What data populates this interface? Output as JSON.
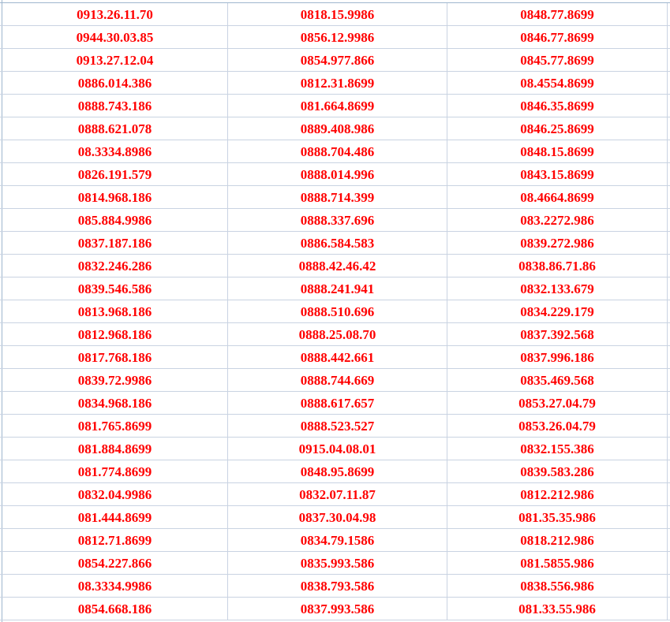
{
  "text_color": "#ff0000",
  "rows": [
    [
      "0913.26.11.70",
      "0818.15.9986",
      "0848.77.8699"
    ],
    [
      "0944.30.03.85",
      "0856.12.9986",
      "0846.77.8699"
    ],
    [
      "0913.27.12.04",
      "0854.977.866",
      "0845.77.8699"
    ],
    [
      "0886.014.386",
      "0812.31.8699",
      "08.4554.8699"
    ],
    [
      "0888.743.186",
      "081.664.8699",
      "0846.35.8699"
    ],
    [
      "0888.621.078",
      "0889.408.986",
      "0846.25.8699"
    ],
    [
      "08.3334.8986",
      "0888.704.486",
      "0848.15.8699"
    ],
    [
      "0826.191.579",
      "0888.014.996",
      "0843.15.8699"
    ],
    [
      "0814.968.186",
      "0888.714.399",
      "08.4664.8699"
    ],
    [
      "085.884.9986",
      "0888.337.696",
      "083.2272.986"
    ],
    [
      "0837.187.186",
      "0886.584.583",
      "0839.272.986"
    ],
    [
      "0832.246.286",
      "0888.42.46.42",
      "0838.86.71.86"
    ],
    [
      "0839.546.586",
      "0888.241.941",
      "0832.133.679"
    ],
    [
      "0813.968.186",
      "0888.510.696",
      "0834.229.179"
    ],
    [
      "0812.968.186",
      "0888.25.08.70",
      "0837.392.568"
    ],
    [
      "0817.768.186",
      "0888.442.661",
      "0837.996.186"
    ],
    [
      "0839.72.9986",
      "0888.744.669",
      "0835.469.568"
    ],
    [
      "0834.968.186",
      "0888.617.657",
      "0853.27.04.79"
    ],
    [
      "081.765.8699",
      "0888.523.527",
      "0853.26.04.79"
    ],
    [
      "081.884.8699",
      "0915.04.08.01",
      "0832.155.386"
    ],
    [
      "081.774.8699",
      "0848.95.8699",
      "0839.583.286"
    ],
    [
      "0832.04.9986",
      "0832.07.11.87",
      "0812.212.986"
    ],
    [
      "081.444.8699",
      "0837.30.04.98",
      "081.35.35.986"
    ],
    [
      "0812.71.8699",
      "0834.79.1586",
      "0818.212.986"
    ],
    [
      "0854.227.866",
      "0835.993.586",
      "081.5855.986"
    ],
    [
      "08.3334.9986",
      "0838.793.586",
      "0838.556.986"
    ],
    [
      "0854.668.186",
      "0837.993.586",
      "081.33.55.986"
    ]
  ]
}
